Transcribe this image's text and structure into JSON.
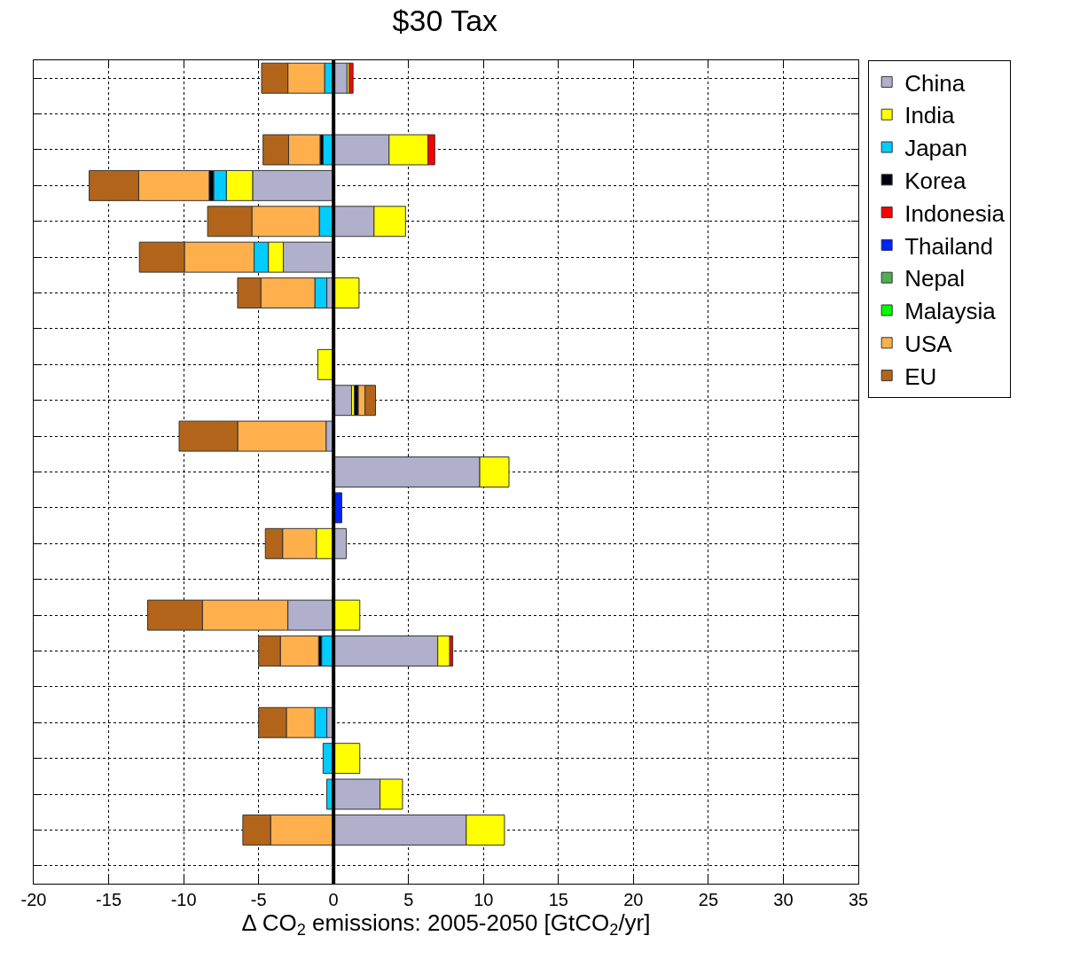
{
  "chart_data": {
    "type": "bar",
    "orientation": "horizontal",
    "stacked": true,
    "title": "$30 Tax",
    "xlabel": "Δ CO$_{2}$ emissions: 2005-2050 [GtCO$_{2}$/yr]",
    "categories": [
      null,
      null,
      null,
      null,
      null,
      null,
      null,
      null,
      null,
      null,
      null,
      null,
      null,
      null,
      null,
      null,
      null,
      null,
      null,
      null,
      null,
      null,
      null
    ],
    "series": [
      {
        "name": "China",
        "color": "#b0b0cc",
        "values": [
          0.9,
          null,
          3.7,
          -5.4,
          2.7,
          -3.35,
          -0.45,
          null,
          null,
          1.2,
          -0.5,
          9.75,
          null,
          0.85,
          null,
          -3.05,
          6.95,
          null,
          -0.45,
          null,
          3.1,
          8.85,
          null
        ]
      },
      {
        "name": "India",
        "color": "#ffff00",
        "values": [
          0.15,
          null,
          2.6,
          -1.75,
          2.1,
          -1.0,
          1.7,
          null,
          -1.05,
          0.2,
          null,
          1.95,
          null,
          -1.15,
          null,
          1.75,
          0.8,
          null,
          null,
          1.75,
          1.5,
          2.55,
          null
        ]
      },
      {
        "name": "Japan",
        "color": "#00ccff",
        "values": [
          -0.6,
          null,
          -0.7,
          -0.85,
          -0.95,
          -0.95,
          -0.8,
          null,
          null,
          null,
          null,
          null,
          null,
          null,
          null,
          null,
          -0.8,
          null,
          -0.8,
          -0.7,
          -0.45,
          null,
          null
        ]
      },
      {
        "name": "Korea",
        "color": "#000010",
        "values": [
          null,
          null,
          -0.2,
          -0.3,
          null,
          null,
          null,
          null,
          null,
          0.25,
          null,
          null,
          null,
          null,
          null,
          null,
          -0.2,
          null,
          null,
          null,
          null,
          null,
          null
        ]
      },
      {
        "name": "Indonesia",
        "color": "#ff0000",
        "values": [
          0.25,
          null,
          0.45,
          null,
          null,
          null,
          null,
          null,
          null,
          null,
          null,
          null,
          null,
          null,
          null,
          null,
          0.2,
          null,
          null,
          null,
          null,
          null,
          null
        ]
      },
      {
        "name": "Thailand",
        "color": "#0022ff",
        "values": [
          null,
          null,
          null,
          null,
          null,
          null,
          null,
          null,
          null,
          null,
          null,
          null,
          0.55,
          null,
          null,
          null,
          null,
          null,
          null,
          null,
          null,
          null,
          null
        ]
      },
      {
        "name": "Nepal",
        "color": "#4caf50",
        "values": [
          null,
          null,
          null,
          null,
          null,
          null,
          null,
          null,
          null,
          null,
          null,
          null,
          null,
          null,
          null,
          null,
          null,
          null,
          null,
          null,
          null,
          null,
          null
        ]
      },
      {
        "name": "Malaysia",
        "color": "#00ff00",
        "values": [
          null,
          null,
          null,
          null,
          null,
          null,
          null,
          null,
          null,
          null,
          null,
          null,
          null,
          null,
          null,
          null,
          null,
          null,
          null,
          null,
          null,
          null,
          null
        ]
      },
      {
        "name": "USA",
        "color": "#ffb04d",
        "values": [
          -2.45,
          null,
          -2.1,
          -4.7,
          -4.5,
          -4.65,
          -3.6,
          null,
          null,
          0.45,
          -5.9,
          null,
          null,
          -2.25,
          null,
          -5.7,
          -2.55,
          null,
          -1.9,
          null,
          null,
          -4.2,
          null
        ]
      },
      {
        "name": "EU",
        "color": "#b2651a",
        "values": [
          -1.75,
          null,
          -1.7,
          -3.3,
          -2.95,
          -3.0,
          -1.55,
          null,
          null,
          0.7,
          -3.9,
          null,
          null,
          -1.15,
          null,
          -3.65,
          -1.45,
          null,
          -1.85,
          null,
          null,
          -1.85,
          null
        ]
      }
    ],
    "xlim": [
      -20,
      35
    ],
    "xticks": [
      -20,
      -15,
      -10,
      -5,
      0,
      5,
      10,
      15,
      20,
      25,
      30,
      35
    ],
    "ref_lines": [
      {
        "axis": "x",
        "value": 0,
        "color": "#000000",
        "line_style": "solid"
      }
    ],
    "grid": true,
    "legend": "top right",
    "tick_labels": "x"
  }
}
